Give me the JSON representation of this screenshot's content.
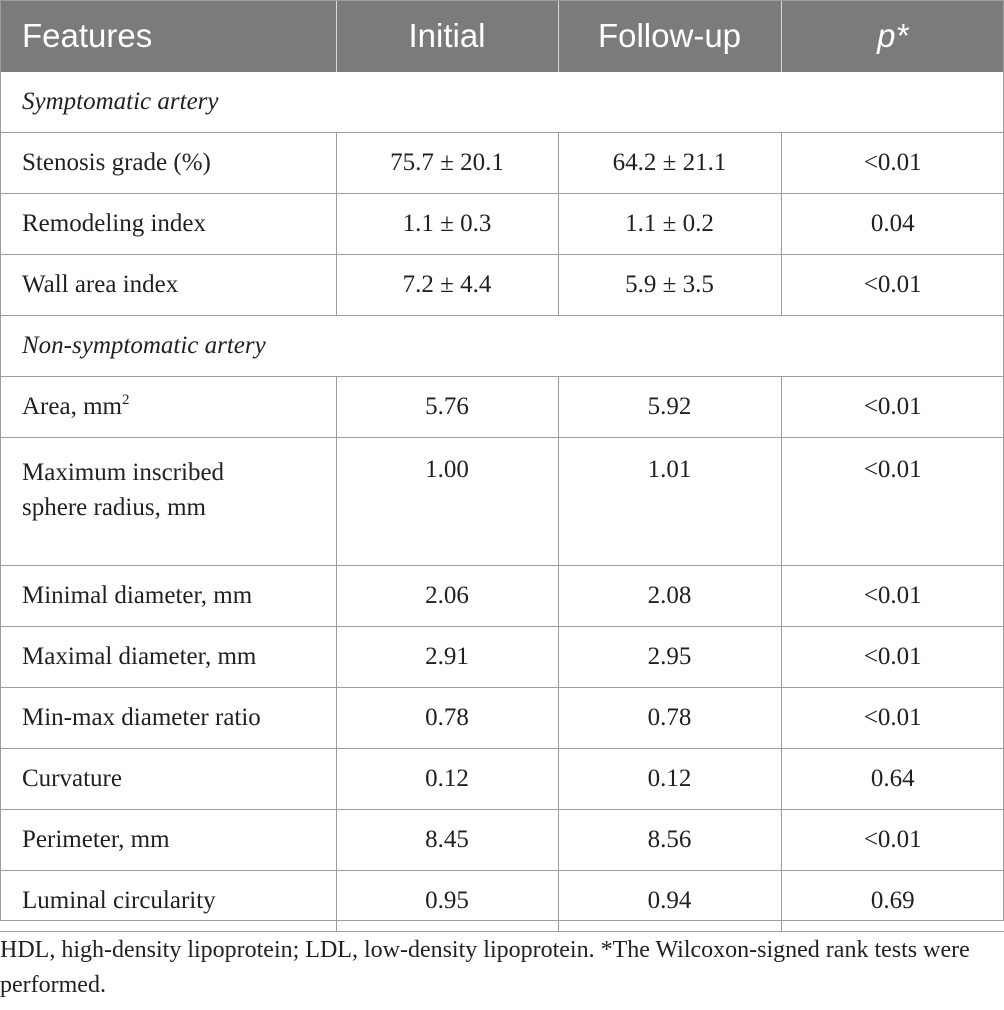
{
  "header": {
    "features": "Features",
    "initial": "Initial",
    "followup": "Follow-up",
    "p": "p*"
  },
  "sections": [
    {
      "title": "Symptomatic artery",
      "rows": [
        {
          "feature": "Stenosis grade (%)",
          "initial": "75.7 ± 20.1",
          "followup": "64.2 ± 21.1",
          "p": "<0.01"
        },
        {
          "feature": "Remodeling index",
          "initial": "1.1 ± 0.3",
          "followup": "1.1 ± 0.2",
          "p": "0.04"
        },
        {
          "feature": "Wall area index",
          "initial": "7.2 ± 4.4",
          "followup": "5.9 ± 3.5",
          "p": "<0.01"
        }
      ]
    },
    {
      "title": "Non-symptomatic artery",
      "rows": [
        {
          "feature": "Area, mm",
          "feature_sup": "2",
          "initial": "5.76",
          "followup": "5.92",
          "p": "<0.01"
        },
        {
          "feature": "Maximum inscribed sphere radius, mm",
          "feature_line1": "Maximum inscribed",
          "feature_line2": "sphere radius, mm",
          "initial": "1.00",
          "followup": "1.01",
          "p": "<0.01"
        },
        {
          "feature": "Minimal diameter, mm",
          "initial": "2.06",
          "followup": "2.08",
          "p": "<0.01"
        },
        {
          "feature": "Maximal diameter, mm",
          "initial": "2.91",
          "followup": "2.95",
          "p": "<0.01"
        },
        {
          "feature": "Min-max diameter ratio",
          "initial": "0.78",
          "followup": "0.78",
          "p": "<0.01"
        },
        {
          "feature": "Curvature",
          "initial": "0.12",
          "followup": "0.12",
          "p": "0.64"
        },
        {
          "feature": "Perimeter, mm",
          "initial": "8.45",
          "followup": "8.56",
          "p": "<0.01"
        },
        {
          "feature": "Luminal circularity",
          "initial": "0.95",
          "followup": "0.94",
          "p": "0.69"
        }
      ]
    }
  ],
  "footnote": "HDL, high-density lipoprotein; LDL, low-density lipoprotein. *The Wilcoxon-signed rank tests were performed."
}
